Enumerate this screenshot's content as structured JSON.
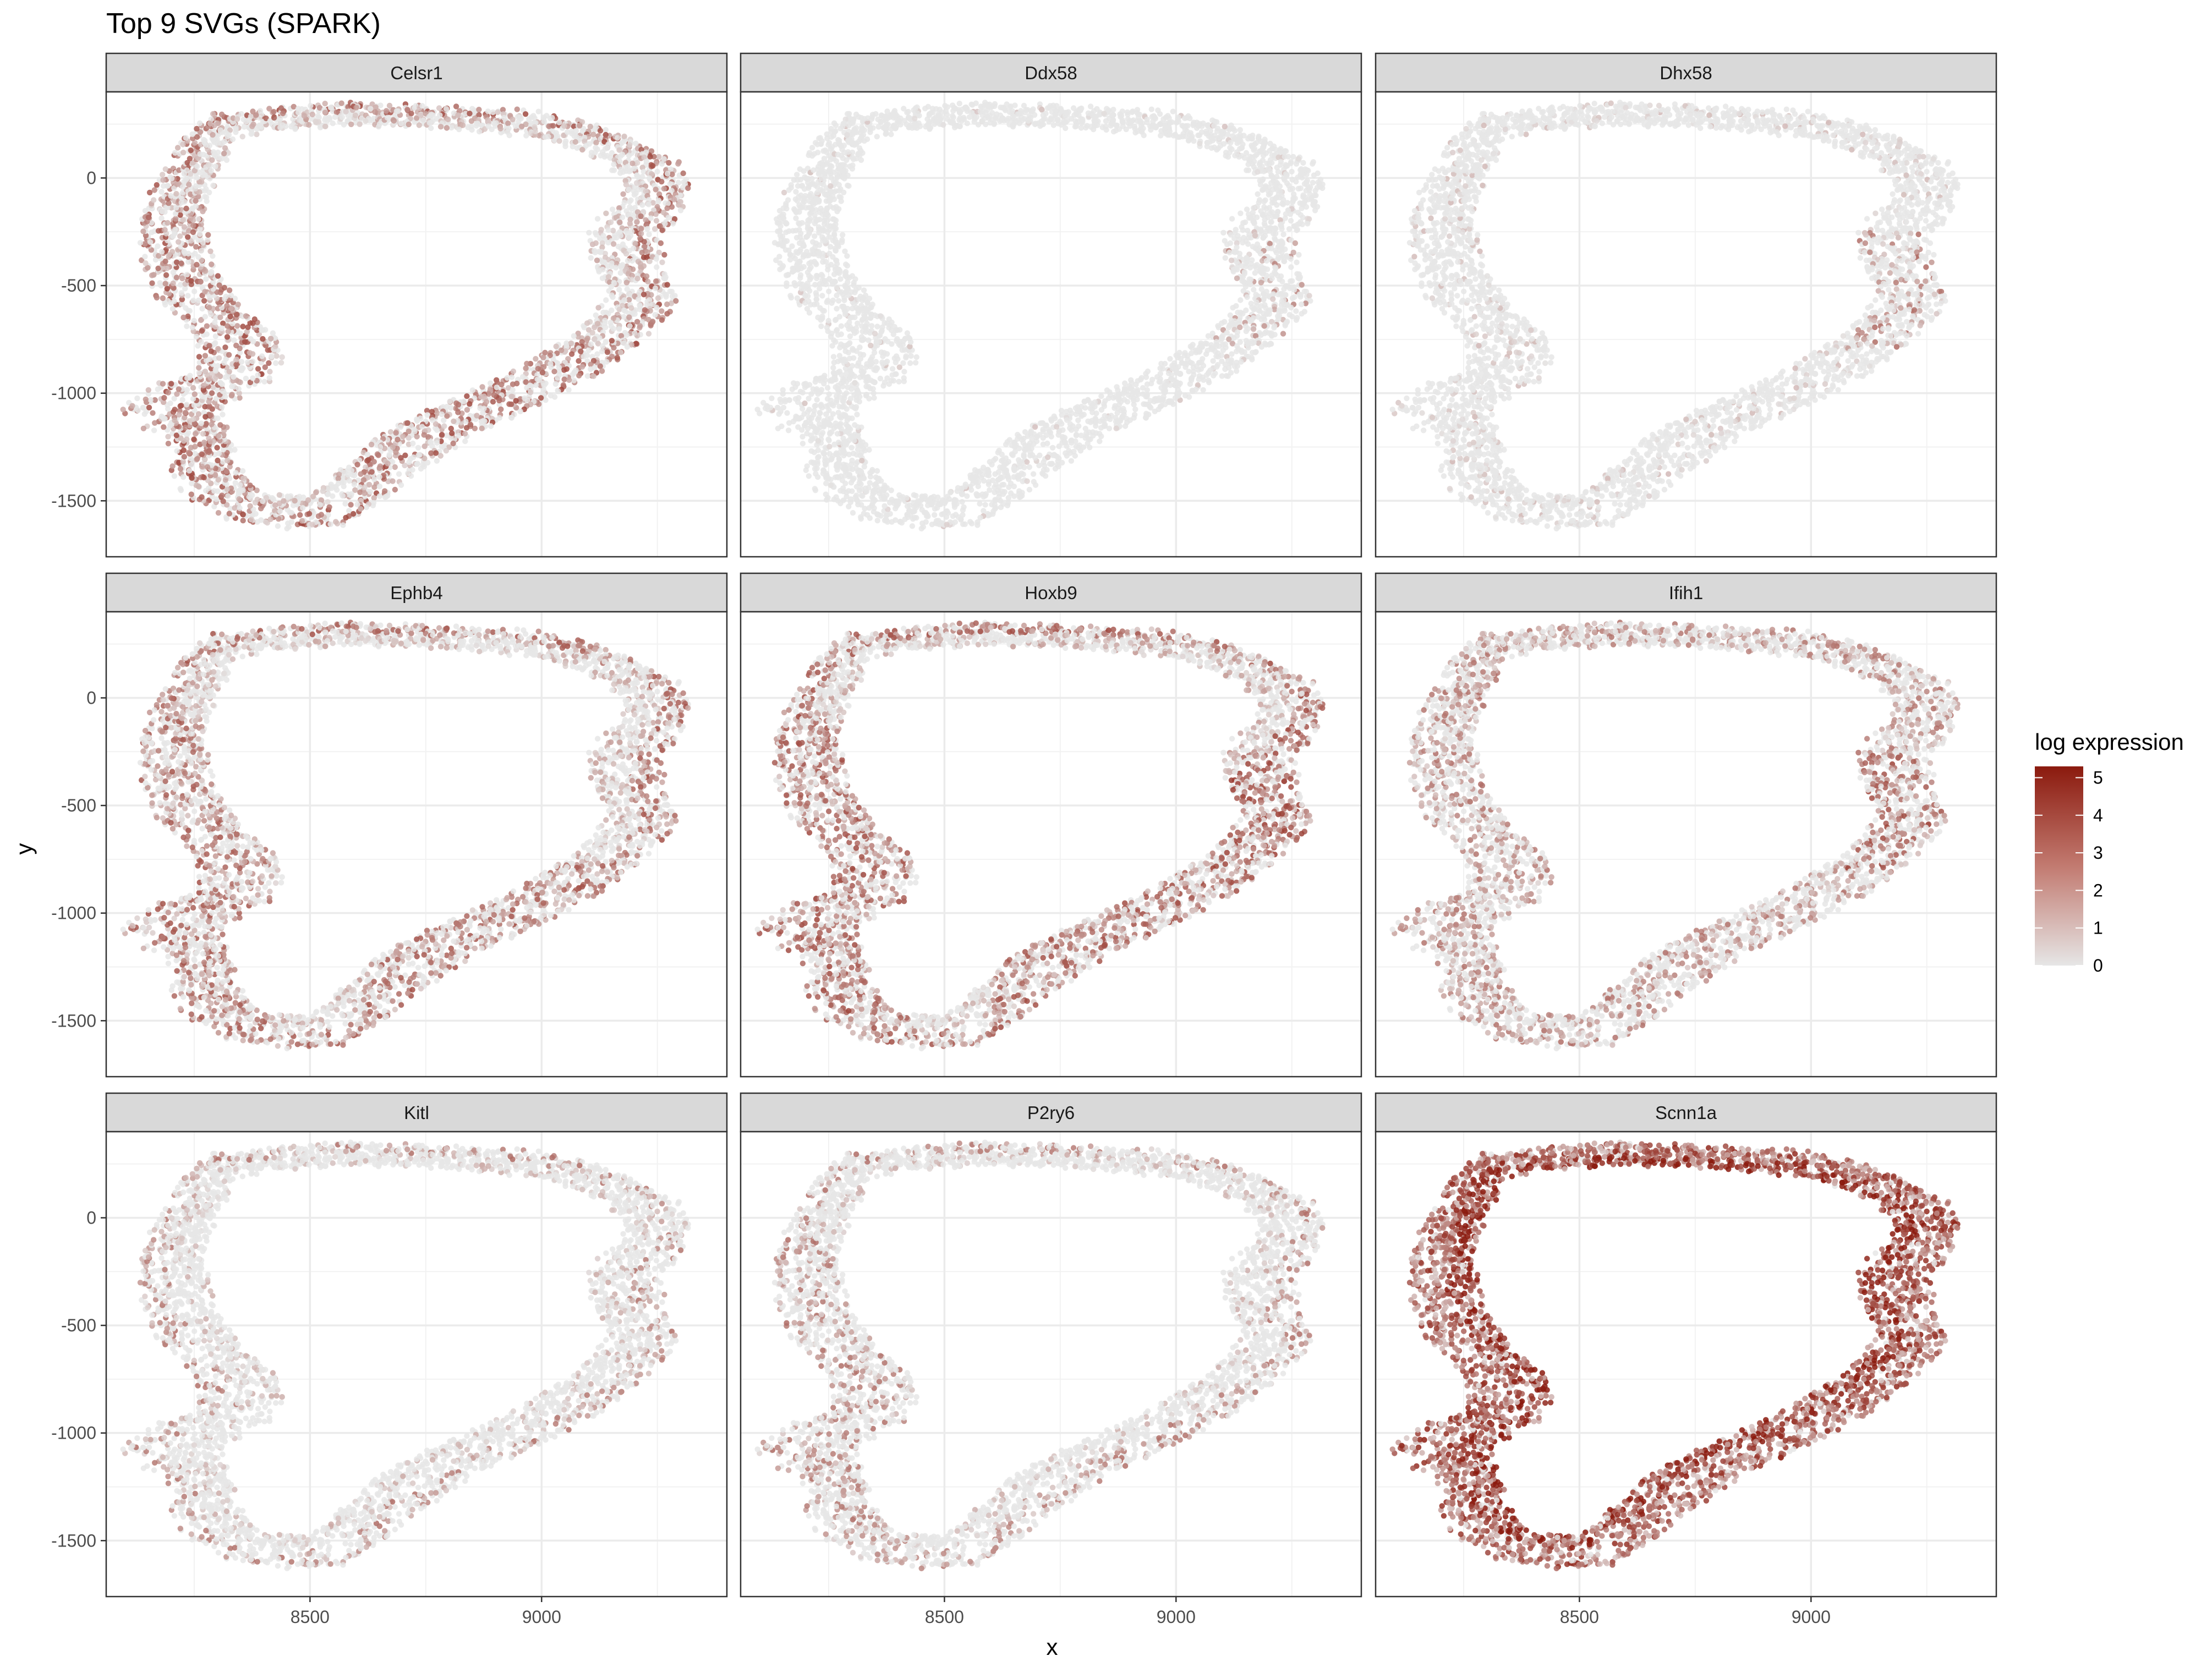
{
  "chart_data": {
    "type": "scatter",
    "title": "Top 9 SVGs (SPARK)",
    "xlabel": "x",
    "ylabel": "y",
    "xlim": [
      8060,
      9400
    ],
    "ylim": [
      -1760,
      400
    ],
    "x_ticks": [
      8500,
      9000
    ],
    "x_tick_labels": [
      "8500",
      "9000"
    ],
    "y_ticks": [
      0,
      -500,
      -1000,
      -1500
    ],
    "y_tick_labels": [
      "0",
      "-500",
      "-1000",
      "-1500"
    ],
    "facet_layout": "3x3",
    "grid": true,
    "legend": {
      "title": "log expression",
      "placement": "right",
      "min": 0,
      "max": 5.3,
      "ticks": [
        0,
        1,
        2,
        3,
        4,
        5
      ],
      "tick_labels": [
        "0",
        "1",
        "2",
        "3",
        "4",
        "5"
      ],
      "low_color": "#e6e6e6",
      "high_color": "#8b1a0e"
    },
    "panels": [
      {
        "name": "Celsr1",
        "expression": "outer rim, lower-right arc and left lobes high",
        "mean_level": 0.35,
        "hot_regions": [
          "outer",
          "left",
          "lower-right"
        ]
      },
      {
        "name": "Ddx58",
        "expression": "mostly low; right-side band",
        "mean_level": 0.03,
        "hot_regions": [
          "right-mid"
        ]
      },
      {
        "name": "Dhx58",
        "expression": "low overall; strong right-mid cluster",
        "mean_level": 0.12,
        "hot_regions": [
          "right-mid"
        ]
      },
      {
        "name": "Ephb4",
        "expression": "outer rim and lower arc",
        "mean_level": 0.3,
        "hot_regions": [
          "outer",
          "left",
          "lower-right"
        ]
      },
      {
        "name": "Hoxb9",
        "expression": "broad moderate across tissue",
        "mean_level": 0.35,
        "hot_regions": [
          "outer",
          "right-mid",
          "left",
          "lower-right"
        ]
      },
      {
        "name": "Ifih1",
        "expression": "broad low-moderate; right-mid higher",
        "mean_level": 0.3,
        "hot_regions": [
          "right-mid",
          "all"
        ]
      },
      {
        "name": "Kitl",
        "expression": "low; faint outer rim",
        "mean_level": 0.15,
        "hot_regions": [
          "outer"
        ]
      },
      {
        "name": "P2ry6",
        "expression": "low; faint outer rim",
        "mean_level": 0.15,
        "hot_regions": [
          "outer",
          "left"
        ]
      },
      {
        "name": "Scnn1a",
        "expression": "high everywhere, strongest on inner edge",
        "mean_level": 0.8,
        "hot_regions": [
          "inner",
          "all"
        ]
      }
    ],
    "tissue_outline": {
      "description": "ring-shaped tissue section sampled along this closed contour (data units)",
      "outer": [
        [
          8290,
          295
        ],
        [
          8420,
          320
        ],
        [
          8560,
          345
        ],
        [
          8700,
          340
        ],
        [
          8850,
          325
        ],
        [
          8990,
          305
        ],
        [
          9110,
          250
        ],
        [
          9210,
          170
        ],
        [
          9290,
          80
        ],
        [
          9320,
          -20
        ],
        [
          9300,
          -140
        ],
        [
          9260,
          -280
        ],
        [
          9270,
          -420
        ],
        [
          9290,
          -570
        ],
        [
          9240,
          -720
        ],
        [
          9140,
          -880
        ],
        [
          9020,
          -1030
        ],
        [
          8900,
          -1150
        ],
        [
          8800,
          -1260
        ],
        [
          8720,
          -1380
        ],
        [
          8660,
          -1500
        ],
        [
          8580,
          -1610
        ],
        [
          8460,
          -1630
        ],
        [
          8340,
          -1600
        ],
        [
          8240,
          -1500
        ],
        [
          8200,
          -1380
        ],
        [
          8220,
          -1260
        ],
        [
          8140,
          -1160
        ],
        [
          8090,
          -1090
        ],
        [
          8140,
          -990
        ],
        [
          8250,
          -920
        ],
        [
          8270,
          -800
        ],
        [
          8230,
          -670
        ],
        [
          8170,
          -550
        ],
        [
          8140,
          -400
        ],
        [
          8130,
          -250
        ],
        [
          8150,
          -100
        ],
        [
          8190,
          60
        ],
        [
          8230,
          180
        ]
      ],
      "inner": [
        [
          8340,
          190
        ],
        [
          8460,
          230
        ],
        [
          8600,
          250
        ],
        [
          8730,
          245
        ],
        [
          8860,
          225
        ],
        [
          8980,
          195
        ],
        [
          9080,
          140
        ],
        [
          9150,
          70
        ],
        [
          9180,
          -20
        ],
        [
          9160,
          -120
        ],
        [
          9100,
          -250
        ],
        [
          9110,
          -400
        ],
        [
          9150,
          -540
        ],
        [
          9100,
          -680
        ],
        [
          9000,
          -830
        ],
        [
          8880,
          -970
        ],
        [
          8760,
          -1080
        ],
        [
          8650,
          -1200
        ],
        [
          8580,
          -1340
        ],
        [
          8520,
          -1440
        ],
        [
          8460,
          -1480
        ],
        [
          8380,
          -1430
        ],
        [
          8340,
          -1340
        ],
        [
          8330,
          -1220
        ],
        [
          8300,
          -1110
        ],
        [
          8350,
          -1010
        ],
        [
          8420,
          -930
        ],
        [
          8440,
          -800
        ],
        [
          8400,
          -680
        ],
        [
          8330,
          -560
        ],
        [
          8290,
          -420
        ],
        [
          8270,
          -270
        ],
        [
          8270,
          -120
        ],
        [
          8300,
          40
        ]
      ]
    }
  }
}
